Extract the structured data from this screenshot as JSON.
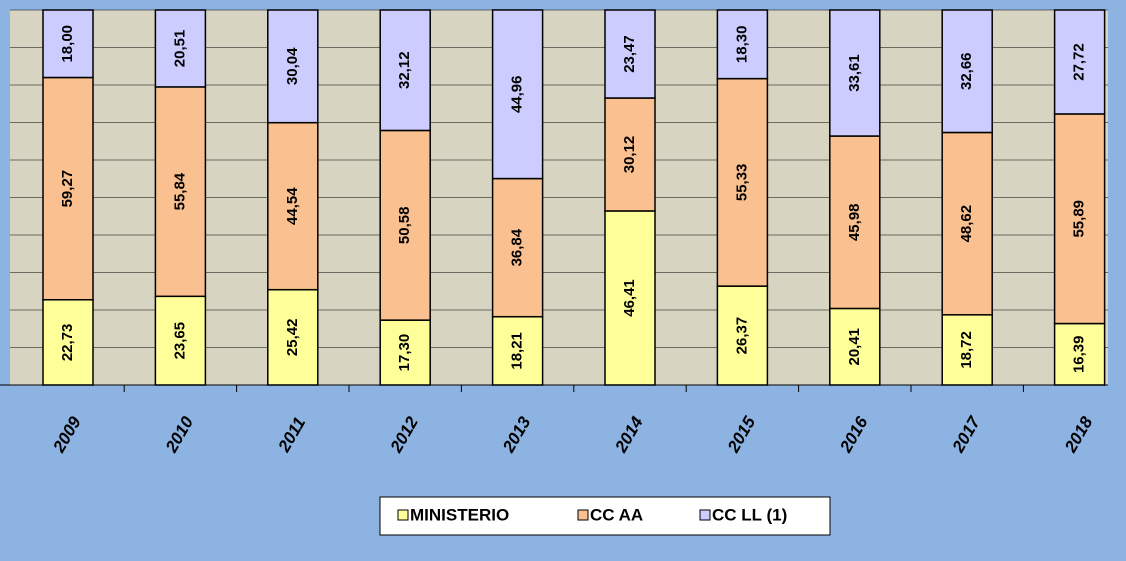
{
  "chart_data": {
    "type": "stacked_bar",
    "categories": [
      "2009",
      "2010",
      "2011",
      "2012",
      "2013",
      "2014",
      "2015",
      "2016",
      "2017",
      "2018"
    ],
    "series": [
      {
        "name": "MINISTERIO",
        "color": "#ffff99",
        "values": [
          22.73,
          23.65,
          25.42,
          17.3,
          18.21,
          46.41,
          26.37,
          20.41,
          18.72,
          16.39
        ],
        "value_labels": [
          "22,73",
          "23,65",
          "25,42",
          "17,30",
          "18,21",
          "46,41",
          "26,37",
          "20,41",
          "18,72",
          "16,39"
        ]
      },
      {
        "name": "CC AA",
        "color": "#fac090",
        "values": [
          59.27,
          55.84,
          44.54,
          50.58,
          36.84,
          30.12,
          55.33,
          45.98,
          48.62,
          55.89
        ],
        "value_labels": [
          "59,27",
          "55,84",
          "44,54",
          "50,58",
          "36,84",
          "30,12",
          "55,33",
          "45,98",
          "48,62",
          "55,89"
        ]
      },
      {
        "name": "CC LL (1)",
        "color": "#ccccff",
        "values": [
          18.0,
          20.51,
          30.04,
          32.12,
          44.96,
          23.47,
          18.3,
          33.61,
          32.66,
          27.72
        ],
        "value_labels": [
          "18,00",
          "20,51",
          "30,04",
          "32,12",
          "44,96",
          "23,47",
          "18,30",
          "33,61",
          "32,66",
          "27,72"
        ]
      }
    ],
    "ylim": [
      0,
      100
    ],
    "yticks": [
      0,
      10,
      20,
      30,
      40,
      50,
      60,
      70,
      80,
      90,
      100
    ],
    "grid": true
  }
}
